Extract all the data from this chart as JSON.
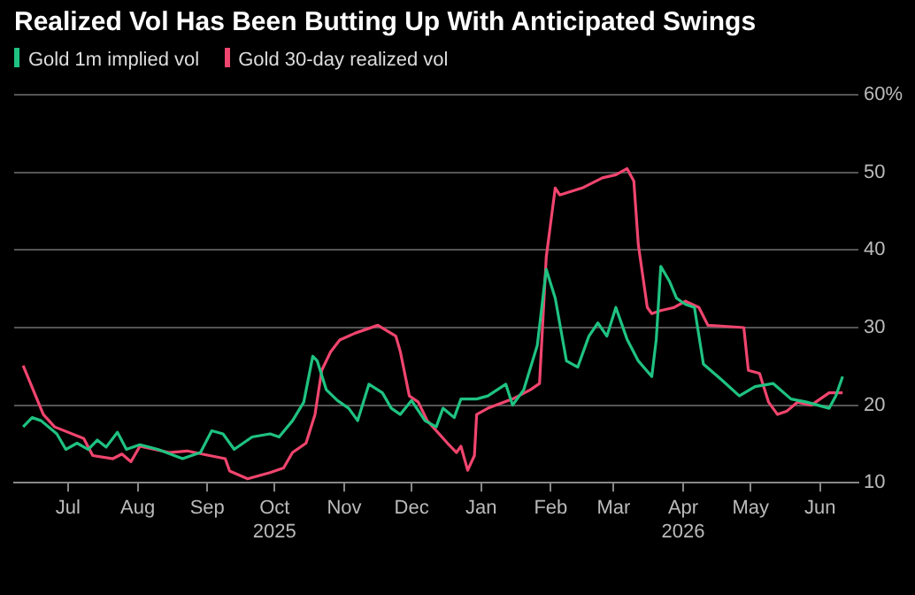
{
  "chart_data": {
    "type": "line",
    "title": "Realized Vol Has Been Butting Up With Anticipated Swings",
    "xlim": [
      "2025-06-07",
      "2026-06-18"
    ],
    "xticks": [
      {
        "value": "2025-07-01",
        "label": "Jul"
      },
      {
        "value": "2025-08-01",
        "label": "Aug"
      },
      {
        "value": "2025-09-01",
        "label": "Sep"
      },
      {
        "value": "2025-10-01",
        "label": "Oct\n2025"
      },
      {
        "value": "2025-11-01",
        "label": "Nov"
      },
      {
        "value": "2025-12-01",
        "label": "Dec"
      },
      {
        "value": "2026-01-01",
        "label": "Jan"
      },
      {
        "value": "2026-02-01",
        "label": "Feb"
      },
      {
        "value": "2026-03-01",
        "label": "Mar"
      },
      {
        "value": "2026-04-01",
        "label": "Apr\n2026"
      },
      {
        "value": "2026-05-01",
        "label": "May"
      },
      {
        "value": "2026-06-01",
        "label": "Jun"
      }
    ],
    "ylim": [
      10,
      60
    ],
    "yticks": [
      10,
      20,
      30,
      40,
      50,
      {
        "value": 60,
        "label": "60%"
      }
    ],
    "grid": "y",
    "legend": "top left",
    "line_style": "solid",
    "marker": "none",
    "series": [
      {
        "name": "Gold 1m implied vol",
        "color": "#1fc281",
        "x": [
          "2025-06-11",
          "2025-06-15",
          "2025-06-19",
          "2025-06-26",
          "2025-06-30",
          "2025-07-05",
          "2025-07-10",
          "2025-07-14",
          "2025-07-18",
          "2025-07-23",
          "2025-07-27",
          "2025-08-02",
          "2025-08-10",
          "2025-08-21",
          "2025-08-29",
          "2025-09-03",
          "2025-09-08",
          "2025-09-13",
          "2025-09-21",
          "2025-09-29",
          "2025-10-03",
          "2025-10-09",
          "2025-10-14",
          "2025-10-18",
          "2025-10-20",
          "2025-10-24",
          "2025-10-29",
          "2025-11-03",
          "2025-11-07",
          "2025-11-12",
          "2025-11-18",
          "2025-11-22",
          "2025-11-26",
          "2025-12-01",
          "2025-12-07",
          "2025-12-12",
          "2025-12-15",
          "2025-12-20",
          "2025-12-23",
          "2025-12-30",
          "2026-01-04",
          "2026-01-12",
          "2026-01-15",
          "2026-01-20",
          "2026-01-26",
          "2026-01-30",
          "2026-02-03",
          "2026-02-08",
          "2026-02-13",
          "2026-02-18",
          "2026-02-22",
          "2026-02-26",
          "2026-03-02",
          "2026-03-07",
          "2026-03-12",
          "2026-03-18",
          "2026-03-20",
          "2026-03-22",
          "2026-03-26",
          "2026-03-29",
          "2026-04-02",
          "2026-04-06",
          "2026-04-10",
          "2026-04-18",
          "2026-04-26",
          "2026-05-03",
          "2026-05-11",
          "2026-05-19",
          "2026-05-26",
          "2026-06-05",
          "2026-06-08",
          "2026-06-11"
        ],
        "values": [
          17.2,
          18.4,
          18,
          16.3,
          14.3,
          15.1,
          14.3,
          15.5,
          14.6,
          16.5,
          14.3,
          14.9,
          14.3,
          13.1,
          13.9,
          16.7,
          16.3,
          14.3,
          15.9,
          16.3,
          15.9,
          18,
          20.4,
          26.3,
          25.7,
          22,
          20.6,
          19.6,
          18,
          22.7,
          21.6,
          19.6,
          18.8,
          20.6,
          18,
          17.2,
          19.6,
          18.4,
          20.8,
          20.8,
          21.2,
          22.7,
          20,
          22,
          27.7,
          37.5,
          33.8,
          25.7,
          24.9,
          28.9,
          30.6,
          28.9,
          32.6,
          28.5,
          25.7,
          23.7,
          28.5,
          37.9,
          35.9,
          33.8,
          33,
          32.6,
          25.3,
          23.3,
          21.2,
          22.4,
          22.8,
          20.8,
          20.4,
          19.6,
          21.2,
          23.7
        ]
      },
      {
        "name": "Gold 30-day realized vol",
        "color": "#f0456e",
        "x": [
          "2025-06-11",
          "2025-06-20",
          "2025-06-25",
          "2025-07-08",
          "2025-07-12",
          "2025-07-21",
          "2025-07-25",
          "2025-07-29",
          "2025-08-02",
          "2025-08-15",
          "2025-08-23",
          "2025-09-02",
          "2025-09-09",
          "2025-09-11",
          "2025-09-19",
          "2025-09-29",
          "2025-10-05",
          "2025-10-09",
          "2025-10-15",
          "2025-10-19",
          "2025-10-22",
          "2025-10-26",
          "2025-10-30",
          "2025-11-06",
          "2025-11-16",
          "2025-11-24",
          "2025-11-26",
          "2025-11-30",
          "2025-12-04",
          "2025-12-08",
          "2025-12-17",
          "2025-12-21",
          "2025-12-23",
          "2025-12-26",
          "2025-12-29",
          "2025-12-30",
          "2026-01-04",
          "2026-01-15",
          "2026-01-23",
          "2026-01-27",
          "2026-01-30",
          "2026-02-03",
          "2026-02-05",
          "2026-02-15",
          "2026-02-24",
          "2026-03-02",
          "2026-03-07",
          "2026-03-10",
          "2026-03-12",
          "2026-03-16",
          "2026-03-18",
          "2026-03-22",
          "2026-03-28",
          "2026-04-02",
          "2026-04-08",
          "2026-04-12",
          "2026-04-18",
          "2026-04-28",
          "2026-04-30",
          "2026-05-05",
          "2026-05-09",
          "2026-05-13",
          "2026-05-17",
          "2026-05-22",
          "2026-05-28",
          "2026-06-05",
          "2026-06-11"
        ],
        "values": [
          25.1,
          18.8,
          17.2,
          15.7,
          13.5,
          13.1,
          13.7,
          12.7,
          14.7,
          13.9,
          14.1,
          13.5,
          13.1,
          11.5,
          10.5,
          11.3,
          11.9,
          13.9,
          15.1,
          18.8,
          24.5,
          26.9,
          28.4,
          29.3,
          30.3,
          28.9,
          26.9,
          21.2,
          20.4,
          18,
          15.1,
          13.9,
          14.7,
          11.6,
          13.5,
          18.8,
          19.6,
          20.8,
          22,
          22.8,
          39.1,
          48,
          47.1,
          48,
          49.3,
          49.7,
          50.5,
          48.9,
          40.7,
          32.6,
          31.8,
          32.2,
          32.6,
          33.4,
          32.6,
          30.3,
          30.2,
          30,
          24.5,
          24.1,
          20.4,
          18.8,
          19.2,
          20.4,
          20,
          21.6,
          21.6
        ]
      }
    ]
  }
}
